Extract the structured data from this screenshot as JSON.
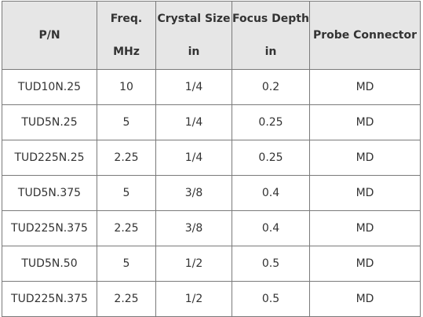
{
  "table": {
    "headers": [
      {
        "lines": [
          "P/N"
        ]
      },
      {
        "lines": [
          "Freq.",
          "MHz"
        ]
      },
      {
        "lines": [
          "Crystal Size",
          "in"
        ]
      },
      {
        "lines": [
          "Focus Depth",
          "in"
        ]
      },
      {
        "lines": [
          "Probe Connector"
        ]
      }
    ],
    "rows": [
      [
        "TUD10N.25",
        "10",
        "1/4",
        "0.2",
        "MD"
      ],
      [
        "TUD5N.25",
        "5",
        "1/4",
        "0.25",
        "MD"
      ],
      [
        "TUD225N.25",
        "2.25",
        "1/4",
        "0.25",
        "MD"
      ],
      [
        "TUD5N.375",
        "5",
        "3/8",
        "0.4",
        "MD"
      ],
      [
        "TUD225N.375",
        "2.25",
        "3/8",
        "0.4",
        "MD"
      ],
      [
        "TUD5N.50",
        "5",
        "1/2",
        "0.5",
        "MD"
      ],
      [
        "TUD225N.375",
        "2.25",
        "1/2",
        "0.5",
        "MD"
      ]
    ]
  }
}
